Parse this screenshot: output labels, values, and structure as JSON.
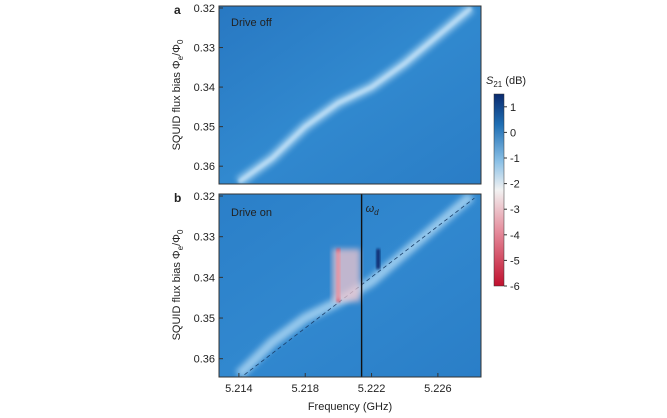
{
  "chart_data": [
    {
      "type": "heatmap",
      "panel_label": "a",
      "annotation": "Drive off",
      "ylabel_main": "SQUID flux bias Φ",
      "ylabel_sub": "e",
      "ylabel_tail": "/Φ",
      "ylabel_tail_sub": "0",
      "ylim": [
        0.3645,
        0.3195
      ],
      "xlim": [
        5.2128,
        5.2286
      ],
      "yticks": [
        {
          "value": 0.32,
          "label": "0.32"
        },
        {
          "value": 0.33,
          "label": "0.33"
        },
        {
          "value": 0.34,
          "label": "0.34"
        },
        {
          "value": 0.35,
          "label": "0.35"
        },
        {
          "value": 0.36,
          "label": "0.36"
        }
      ],
      "resonance_line": [
        {
          "x": 5.214,
          "y": 0.364
        },
        {
          "x": 5.216,
          "y": 0.358
        },
        {
          "x": 5.218,
          "y": 0.35
        },
        {
          "x": 5.22,
          "y": 0.344
        },
        {
          "x": 5.222,
          "y": 0.34
        },
        {
          "x": 5.224,
          "y": 0.334
        },
        {
          "x": 5.226,
          "y": 0.327
        },
        {
          "x": 5.228,
          "y": 0.32
        }
      ]
    },
    {
      "type": "heatmap",
      "panel_label": "b",
      "annotation": "Drive on",
      "marker_label": "ω",
      "marker_sub": "d",
      "marker_x": 5.2214,
      "ylabel_main": "SQUID flux bias Φ",
      "ylabel_sub": "e",
      "ylabel_tail": "/Φ",
      "ylabel_tail_sub": "0",
      "xlabel": "Frequency (GHz)",
      "ylim": [
        0.3645,
        0.3195
      ],
      "xlim": [
        5.2128,
        5.2286
      ],
      "xticks": [
        {
          "value": 5.214,
          "label": "5.214"
        },
        {
          "value": 5.218,
          "label": "5.218"
        },
        {
          "value": 5.222,
          "label": "5.222"
        },
        {
          "value": 5.226,
          "label": "5.226"
        }
      ],
      "yticks": [
        {
          "value": 0.32,
          "label": "0.32"
        },
        {
          "value": 0.33,
          "label": "0.33"
        },
        {
          "value": 0.34,
          "label": "0.34"
        },
        {
          "value": 0.35,
          "label": "0.35"
        },
        {
          "value": 0.36,
          "label": "0.36"
        }
      ],
      "resonance_line": [
        {
          "x": 5.214,
          "y": 0.364
        },
        {
          "x": 5.216,
          "y": 0.356
        },
        {
          "x": 5.218,
          "y": 0.35
        },
        {
          "x": 5.22,
          "y": 0.346
        },
        {
          "x": 5.222,
          "y": 0.341
        },
        {
          "x": 5.224,
          "y": 0.334
        },
        {
          "x": 5.226,
          "y": 0.327
        },
        {
          "x": 5.228,
          "y": 0.32
        }
      ],
      "dip_feature": {
        "x": 5.22,
        "y_from": 0.333,
        "y_to": 0.346
      },
      "peak_feature": {
        "x": 5.2224,
        "y_from": 0.333,
        "y_to": 0.336
      }
    }
  ],
  "colorbar": {
    "label_main": "S",
    "label_sub": "21",
    "label_unit": " (dB)",
    "range": [
      -6,
      1.5
    ],
    "colors": {
      "top": "#0a2a6e",
      "high": "#1f6fb4",
      "mid": "#8ac0e6",
      "zero": "#f2f2f2",
      "low": "#e58a9a",
      "bottom": "#c0102e"
    },
    "ticks": [
      {
        "value": 1,
        "label": "1"
      },
      {
        "value": 0,
        "label": "0"
      },
      {
        "value": -1,
        "label": "-1"
      },
      {
        "value": -2,
        "label": "-2"
      },
      {
        "value": -3,
        "label": "-3"
      },
      {
        "value": -4,
        "label": "-4"
      },
      {
        "value": -5,
        "label": "-5"
      },
      {
        "value": -6,
        "label": "-6"
      }
    ]
  },
  "colors": {
    "background_field": "#2f86cc",
    "resonance": "#a8d4f2",
    "dip": "#c0102e",
    "peak": "#0a2a6e",
    "drive_line": "#111111"
  }
}
